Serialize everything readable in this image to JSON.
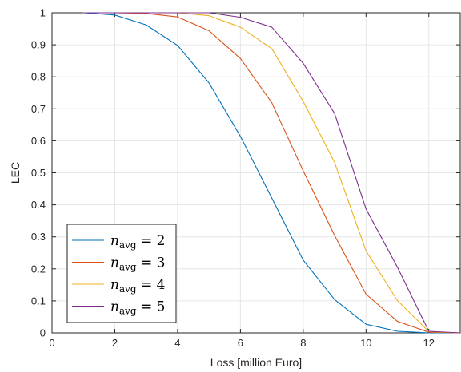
{
  "chart_data": {
    "type": "line",
    "title": "",
    "xlabel": "Loss [million Euro]",
    "ylabel": "LEC",
    "xlim": [
      0,
      13
    ],
    "ylim": [
      0,
      1
    ],
    "xticks": [
      0,
      2,
      4,
      6,
      8,
      10,
      12
    ],
    "yticks": [
      0,
      0.1,
      0.2,
      0.3,
      0.4,
      0.5,
      0.6,
      0.7,
      0.8,
      0.9,
      1
    ],
    "grid": true,
    "legend_position": "bottom-left",
    "x": [
      1,
      2,
      3,
      4,
      5,
      6,
      7,
      8,
      9,
      10,
      11,
      12,
      13
    ],
    "series": [
      {
        "name": "n_avg = 2",
        "legend_var": "n",
        "legend_sub": "avg",
        "legend_rest": " = 2",
        "color": "#0072BD",
        "values": [
          1.0,
          0.993,
          0.962,
          0.898,
          0.781,
          0.614,
          0.421,
          0.227,
          0.104,
          0.027,
          0.005,
          0.0,
          0.0
        ]
      },
      {
        "name": "n_avg = 3",
        "legend_var": "n",
        "legend_sub": "avg",
        "legend_rest": " = 3",
        "color": "#D95319",
        "values": [
          1.0,
          1.0,
          0.998,
          0.987,
          0.944,
          0.857,
          0.719,
          0.506,
          0.304,
          0.121,
          0.036,
          0.002,
          0.0
        ]
      },
      {
        "name": "n_avg = 4",
        "legend_var": "n",
        "legend_sub": "avg",
        "legend_rest": " = 4",
        "color": "#EDB120",
        "values": [
          1.0,
          1.0,
          1.0,
          1.0,
          0.991,
          0.955,
          0.888,
          0.723,
          0.532,
          0.256,
          0.101,
          0.004,
          0.0
        ]
      },
      {
        "name": "n_avg = 5",
        "legend_var": "n",
        "legend_sub": "avg",
        "legend_rest": " = 5",
        "color": "#7E2F8E",
        "values": [
          1.0,
          1.0,
          1.0,
          1.0,
          1.0,
          0.986,
          0.955,
          0.842,
          0.685,
          0.387,
          0.205,
          0.005,
          0.0
        ]
      }
    ]
  }
}
